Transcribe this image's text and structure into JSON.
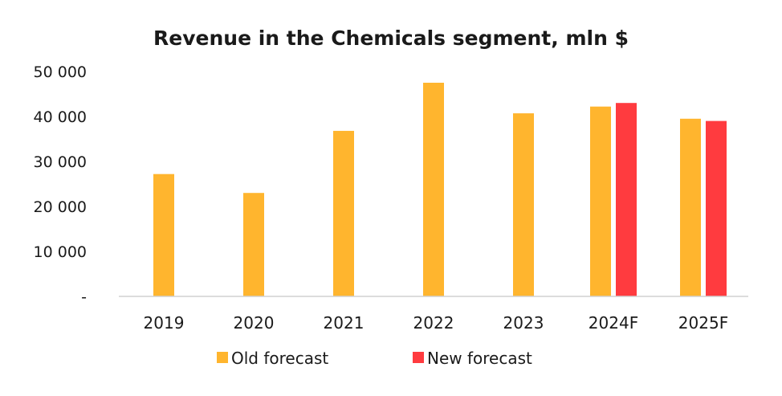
{
  "chart_data": {
    "type": "bar",
    "title": "Revenue in the Chemicals segment, mln $",
    "xlabel": "",
    "ylabel": "",
    "categories": [
      "2019",
      "2020",
      "2021",
      "2022",
      "2023",
      "2024F",
      "2025F"
    ],
    "ylim": [
      0,
      50000
    ],
    "yticks": [
      {
        "value": 0,
        "label": "-"
      },
      {
        "value": 10000,
        "label": "10 000"
      },
      {
        "value": 20000,
        "label": "20 000"
      },
      {
        "value": 30000,
        "label": "30 000"
      },
      {
        "value": 40000,
        "label": "40 000"
      },
      {
        "value": 50000,
        "label": "50 000"
      }
    ],
    "series": [
      {
        "name": "Old forecast",
        "color": "#FFB52E",
        "values": [
          27200,
          23000,
          36800,
          47500,
          40700,
          42200,
          39500
        ]
      },
      {
        "name": "New forecast",
        "color": "#FF3B3F",
        "values": [
          null,
          null,
          null,
          null,
          null,
          43000,
          39000
        ]
      }
    ],
    "grid": false,
    "legend_position": "bottom-center"
  }
}
